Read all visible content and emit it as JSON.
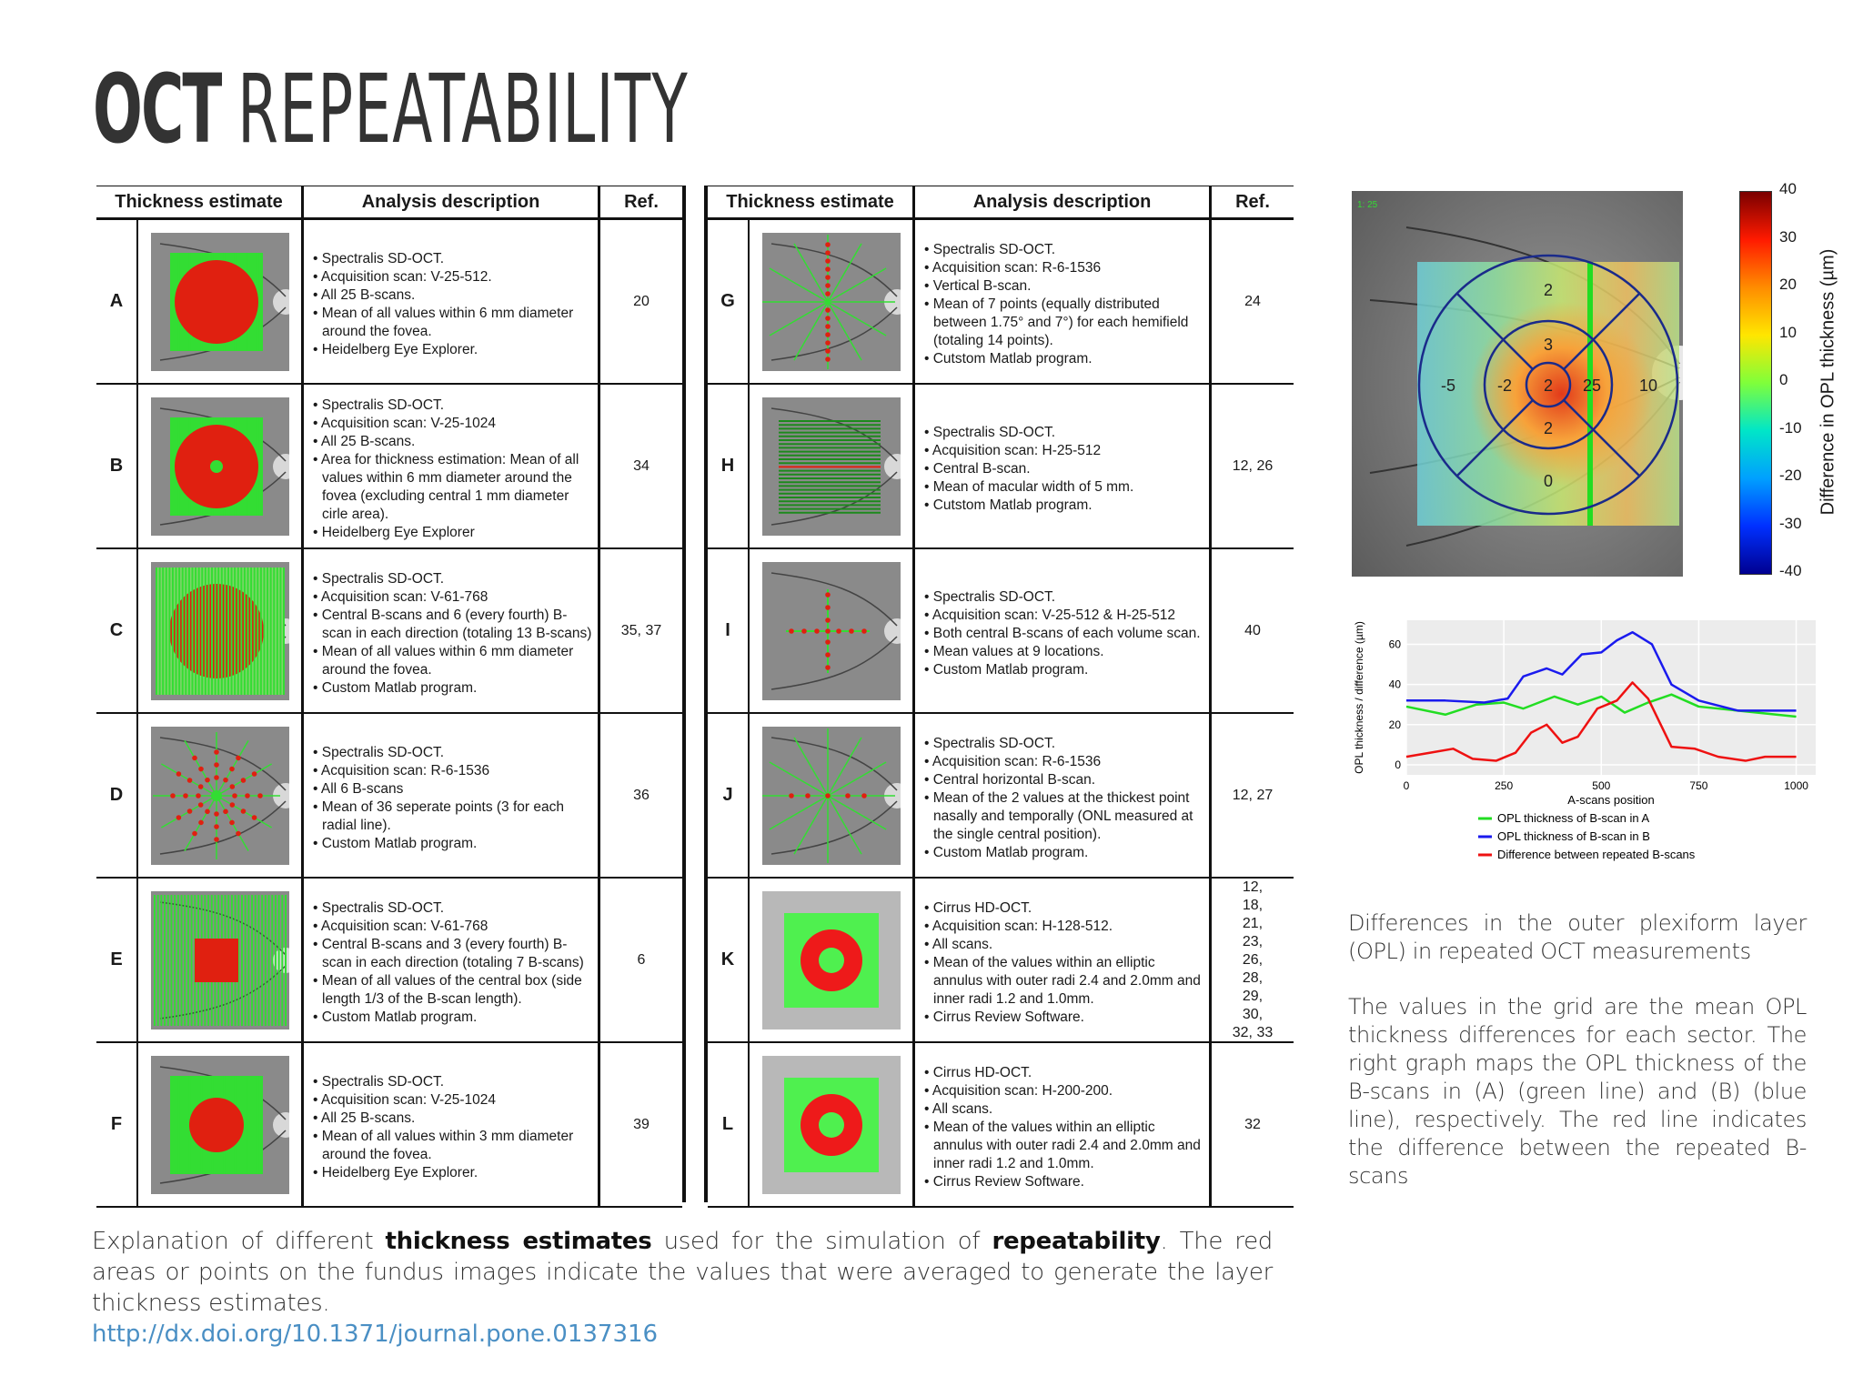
{
  "title": {
    "bold": "OCT",
    "thin": "REPEATABILITY"
  },
  "table_headers": {
    "thickness": "Thickness estimate",
    "analysis": "Analysis description",
    "ref": "Ref."
  },
  "left_rows": [
    {
      "letter": "A",
      "pattern": "vertical-lines-disc",
      "ref": "20",
      "desc": [
        "• Spectralis SD-OCT.",
        "• Acquisition scan: V-25-512.",
        "• All 25 B-scans.",
        "• Mean of all values within 6 mm diameter around the fovea.",
        "• Heidelberg Eye Explorer."
      ]
    },
    {
      "letter": "B",
      "pattern": "vertical-lines-ring",
      "ref": "34",
      "desc": [
        "• Spectralis SD-OCT.",
        "• Acquisition scan: V-25-1024",
        "• All 25 B-scans.",
        "• Area for thickness estimation: Mean of all values within 6 mm diameter around the fovea (excluding central 1 mm diameter cirle area).",
        "• Heidelberg Eye Explorer"
      ]
    },
    {
      "letter": "C",
      "pattern": "dense-vertical-disc",
      "ref": "35, 37",
      "desc": [
        "• Spectralis SD-OCT.",
        "• Acquisition scan: V-61-768",
        "• Central B-scans and 6 (every fourth) B-scan in each direction (totaling 13 B-scans)",
        "• Mean of all values within 6 mm diameter around the fovea.",
        "• Custom Matlab program."
      ]
    },
    {
      "letter": "D",
      "pattern": "radial-dots",
      "ref": "36",
      "desc": [
        "• Spectralis SD-OCT.",
        "• Acquisition scan: R-6-1536",
        "• All 6 B-scans",
        "• Mean of 36 seperate points (3 for each radial line).",
        "• Custom Matlab program."
      ]
    },
    {
      "letter": "E",
      "pattern": "vertical-box",
      "ref": "6",
      "desc": [
        "• Spectralis SD-OCT.",
        "• Acquisition scan: V-61-768",
        "• Central B-scans and 3 (every fourth) B-scan in each direction (totaling 7 B-scans)",
        "• Mean of all values of the central box (side length 1/3 of the B-scan length).",
        "• Custom Matlab program."
      ]
    },
    {
      "letter": "F",
      "pattern": "vertical-small-disc",
      "ref": "39",
      "desc": [
        "• Spectralis SD-OCT.",
        "• Acquisition scan: V-25-1024",
        "• All 25 B-scans.",
        "• Mean of all values within 3 mm diameter around the fovea.",
        "• Heidelberg Eye Explorer."
      ]
    }
  ],
  "right_rows": [
    {
      "letter": "G",
      "pattern": "radial-vertical-dots",
      "ref": "24",
      "desc": [
        "• Spectralis SD-OCT.",
        "• Acquisition scan: R-6-1536",
        "• Vertical B-scan.",
        "• Mean of 7 points (equally distributed between 1.75° and 7°) for each hemifield (totaling 14 points).",
        "• Cutstom Matlab program."
      ]
    },
    {
      "letter": "H",
      "pattern": "horizontal-lines",
      "ref": "12, 26",
      "desc": [
        "• Spectralis SD-OCT.",
        "• Acquisition scan: H-25-512",
        "• Central B-scan.",
        "• Mean of macular width of 5 mm.",
        "• Cutstom Matlab program."
      ]
    },
    {
      "letter": "I",
      "pattern": "cross-dots",
      "ref": "40",
      "desc": [
        "• Spectralis SD-OCT.",
        "• Acquisition scan: V-25-512 & H-25-512",
        "• Both central B-scans of each volume scan.",
        "• Mean values at 9 locations.",
        "• Custom Matlab program."
      ]
    },
    {
      "letter": "J",
      "pattern": "radial-horizontal-dots",
      "ref": "12, 27",
      "desc": [
        "• Spectralis SD-OCT.",
        "• Acquisition scan: R-6-1536",
        "• Central horizontal B-scan.",
        "• Mean of the 2 values at the thickest point nasally and temporally (ONL measured at the single central position).",
        "• Custom Matlab program."
      ]
    },
    {
      "letter": "K",
      "pattern": "annulus",
      "ref": "12, 18, 21, 23, 26, 28, 29, 30, 32, 33",
      "desc": [
        "• Cirrus HD-OCT.",
        "• Acquisition scan: H-128-512.",
        "• All scans.",
        "• Mean of the values within an elliptic annulus with outer radi 2.4 and 2.0mm and inner radi 1.2 and 1.0mm.",
        "• Cirrus Review Software."
      ]
    },
    {
      "letter": "L",
      "pattern": "annulus",
      "ref": "32",
      "desc": [
        "• Cirrus HD-OCT.",
        "• Acquisition scan: H-200-200.",
        "• All scans.",
        "• Mean of the values within an elliptic annulus with outer radi 2.4 and 2.0mm and inner radi 1.2 and 1.0mm.",
        "• Cirrus Review Software."
      ]
    }
  ],
  "caption": {
    "p1": "Explanation of different ",
    "b1": "thickness estimates",
    "p2": " used for the simulation of ",
    "b2": "repeatability",
    "p3": ". The red areas or points on the fundus images indicate the values that were averaged to generate the layer thickness estimates."
  },
  "doi": "http://dx.doi.org/10.1371/journal.pone.0137316",
  "heatmap": {
    "corner_label": "1: 25",
    "sector_values": {
      "outer_top": "2",
      "outer_left": "-5",
      "outer_right": "10",
      "outer_bottom": "0",
      "inner_top": "3",
      "inner_left": "-2",
      "inner_right": "25",
      "inner_bottom": "2",
      "center": "2"
    },
    "colorbar_ticks": [
      "40",
      "30",
      "20",
      "10",
      "0",
      "-10",
      "-20",
      "-30",
      "-40"
    ],
    "colorbar_label": "Difference in OPL thickness (µm)"
  },
  "chart_data": {
    "type": "line",
    "xlabel": "A-scans position",
    "ylabel": "OPL thickness / difference (µm)",
    "xlim": [
      0,
      1050
    ],
    "ylim": [
      -5,
      72
    ],
    "xticks": [
      "0",
      "250",
      "500",
      "750",
      "1000"
    ],
    "yticks": [
      "0",
      "20",
      "40",
      "60"
    ],
    "series": [
      {
        "name": "OPL thickness of B-scan in A",
        "color": "#22dd22",
        "x": [
          0,
          100,
          180,
          250,
          300,
          380,
          440,
          500,
          560,
          620,
          680,
          750,
          850,
          1000
        ],
        "y": [
          29,
          25,
          30,
          31,
          28,
          34,
          30,
          34,
          26,
          31,
          35,
          29,
          27,
          24
        ]
      },
      {
        "name": "OPL thickness of B-scan in B",
        "color": "#1a1aee",
        "x": [
          0,
          100,
          200,
          260,
          300,
          360,
          400,
          450,
          500,
          540,
          580,
          630,
          680,
          750,
          850,
          1000
        ],
        "y": [
          32,
          32,
          31,
          33,
          44,
          48,
          45,
          55,
          56,
          62,
          66,
          60,
          40,
          32,
          27,
          27
        ]
      },
      {
        "name": "Difference between repeated B-scans",
        "color": "#ee1111",
        "x": [
          0,
          60,
          120,
          170,
          230,
          280,
          320,
          360,
          400,
          440,
          490,
          540,
          580,
          620,
          680,
          740,
          800,
          870,
          920,
          1000
        ],
        "y": [
          4,
          6,
          8,
          3,
          2,
          6,
          16,
          20,
          11,
          14,
          28,
          32,
          41,
          33,
          9,
          8,
          4,
          2,
          4,
          4
        ]
      }
    ],
    "legend": "bottom"
  },
  "right_text": {
    "p1": "Differences in the outer plexiform layer (OPL) in repeated OCT measurements",
    "p2": "The values in the grid are the mean OPL thickness differences for each sector. The right graph maps the OPL thickness of the B-scans in (A) (green line) and (B) (blue line), respectively. The red line indicates the difference between the repeated B-scans"
  },
  "colors": {
    "green": "#33dd33",
    "red": "#e02010",
    "fundus": "#8a8a8a"
  }
}
